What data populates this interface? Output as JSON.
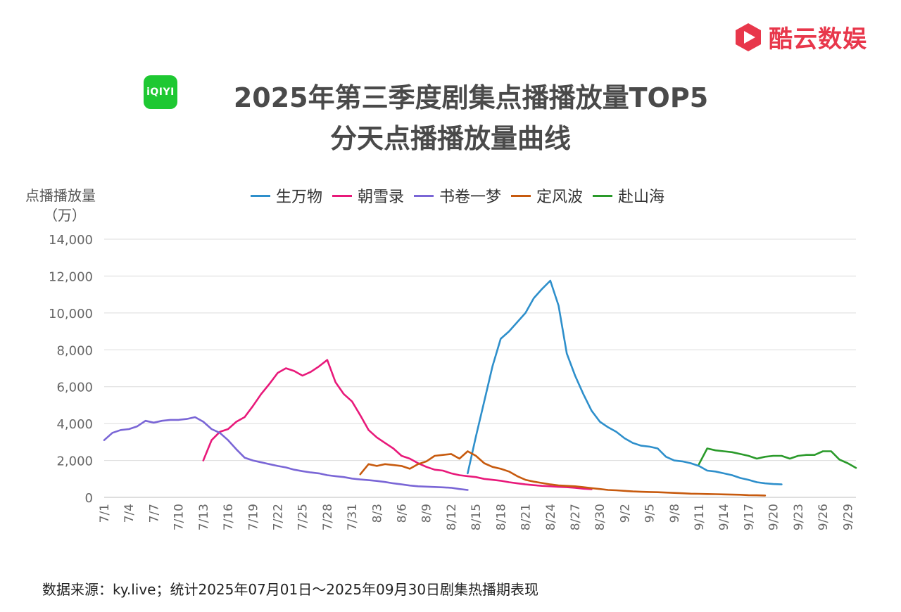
{
  "brand": {
    "name": "酷云数娱",
    "logo_icon": "play-arrow-hexagon-icon",
    "color": "#e8374b"
  },
  "platform_logo": {
    "text": "iQIYI",
    "icon": "iqiyi-logo-icon",
    "color": "#1ec832"
  },
  "title_line1": "2025年第三季度剧集点播播放量TOP5",
  "title_line2": "分天点播播放量曲线",
  "footer": "数据来源：ky.live；统计2025年07月01日～2025年09月30日剧集热播期表现",
  "chart_data": {
    "type": "line",
    "title": "2025年第三季度剧集点播播放量TOP5 分天点播播放量曲线",
    "ylabel_line1": "点播播放量",
    "ylabel_line2": "（万）",
    "ylim": [
      0,
      14000
    ],
    "yticks": [
      0,
      2000,
      4000,
      6000,
      8000,
      10000,
      12000,
      14000
    ],
    "ytick_labels": [
      "0",
      "2,000",
      "4,000",
      "6,000",
      "8,000",
      "10,000",
      "12,000",
      "14,000"
    ],
    "x_start": "7/1",
    "x_end": "9/30",
    "xtick_labels": [
      "7/1",
      "7/4",
      "7/7",
      "7/10",
      "7/13",
      "7/16",
      "7/19",
      "7/22",
      "7/25",
      "7/28",
      "7/31",
      "8/3",
      "8/6",
      "8/9",
      "8/12",
      "8/15",
      "8/18",
      "8/21",
      "8/24",
      "8/27",
      "8/30",
      "9/2",
      "9/5",
      "9/8",
      "9/11",
      "9/14",
      "9/17",
      "9/20",
      "9/23",
      "9/26",
      "9/29"
    ],
    "grid": true,
    "legend_position": "top-center",
    "series": [
      {
        "name": "生万物",
        "color": "#2e8fcb",
        "start": "8/14",
        "values": [
          1300,
          3300,
          5200,
          7100,
          8600,
          9000,
          9500,
          10000,
          10800,
          11300,
          11750,
          10400,
          7800,
          6600,
          5600,
          4700,
          4100,
          3800,
          3550,
          3200,
          2950,
          2800,
          2750,
          2650,
          2200,
          2000,
          1950,
          1850,
          1700,
          1450,
          1400,
          1300,
          1200,
          1050,
          950,
          820,
          760,
          720,
          700
        ]
      },
      {
        "name": "朝雪录",
        "color": "#e8197a",
        "start": "7/13",
        "values": [
          2000,
          3100,
          3550,
          3700,
          4100,
          4350,
          4950,
          5600,
          6150,
          6750,
          7000,
          6850,
          6600,
          6800,
          7100,
          7450,
          6250,
          5600,
          5200,
          4450,
          3650,
          3250,
          2950,
          2650,
          2250,
          2100,
          1850,
          1650,
          1500,
          1450,
          1300,
          1200,
          1150,
          1100,
          1000,
          950,
          900,
          820,
          760,
          700,
          660,
          620,
          600,
          570,
          550,
          520,
          470,
          440
        ]
      },
      {
        "name": "书卷一梦",
        "color": "#7a66d6",
        "start": "7/1",
        "values": [
          3100,
          3500,
          3650,
          3700,
          3850,
          4150,
          4050,
          4150,
          4200,
          4200,
          4250,
          4350,
          4100,
          3700,
          3500,
          3100,
          2600,
          2150,
          2000,
          1900,
          1800,
          1700,
          1620,
          1500,
          1420,
          1350,
          1300,
          1200,
          1150,
          1100,
          1020,
          970,
          930,
          890,
          830,
          760,
          700,
          640,
          600,
          580,
          560,
          540,
          520,
          450,
          400
        ]
      },
      {
        "name": "定风波",
        "color": "#c75a0e",
        "start": "8/1",
        "values": [
          1250,
          1800,
          1700,
          1800,
          1750,
          1700,
          1550,
          1800,
          1950,
          2250,
          2300,
          2350,
          2100,
          2500,
          2250,
          1850,
          1650,
          1550,
          1400,
          1150,
          950,
          850,
          780,
          700,
          650,
          620,
          600,
          550,
          500,
          450,
          400,
          380,
          350,
          320,
          300,
          290,
          280,
          260,
          240,
          220,
          200,
          190,
          180,
          170,
          160,
          150,
          140,
          120,
          110,
          100
        ]
      },
      {
        "name": "赴山海",
        "color": "#2a9a2a",
        "start": "9/11",
        "values": [
          1800,
          2650,
          2550,
          2500,
          2450,
          2350,
          2250,
          2100,
          2200,
          2250,
          2250,
          2100,
          2250,
          2300,
          2300,
          2500,
          2500,
          2050,
          1850,
          1600
        ]
      }
    ]
  }
}
